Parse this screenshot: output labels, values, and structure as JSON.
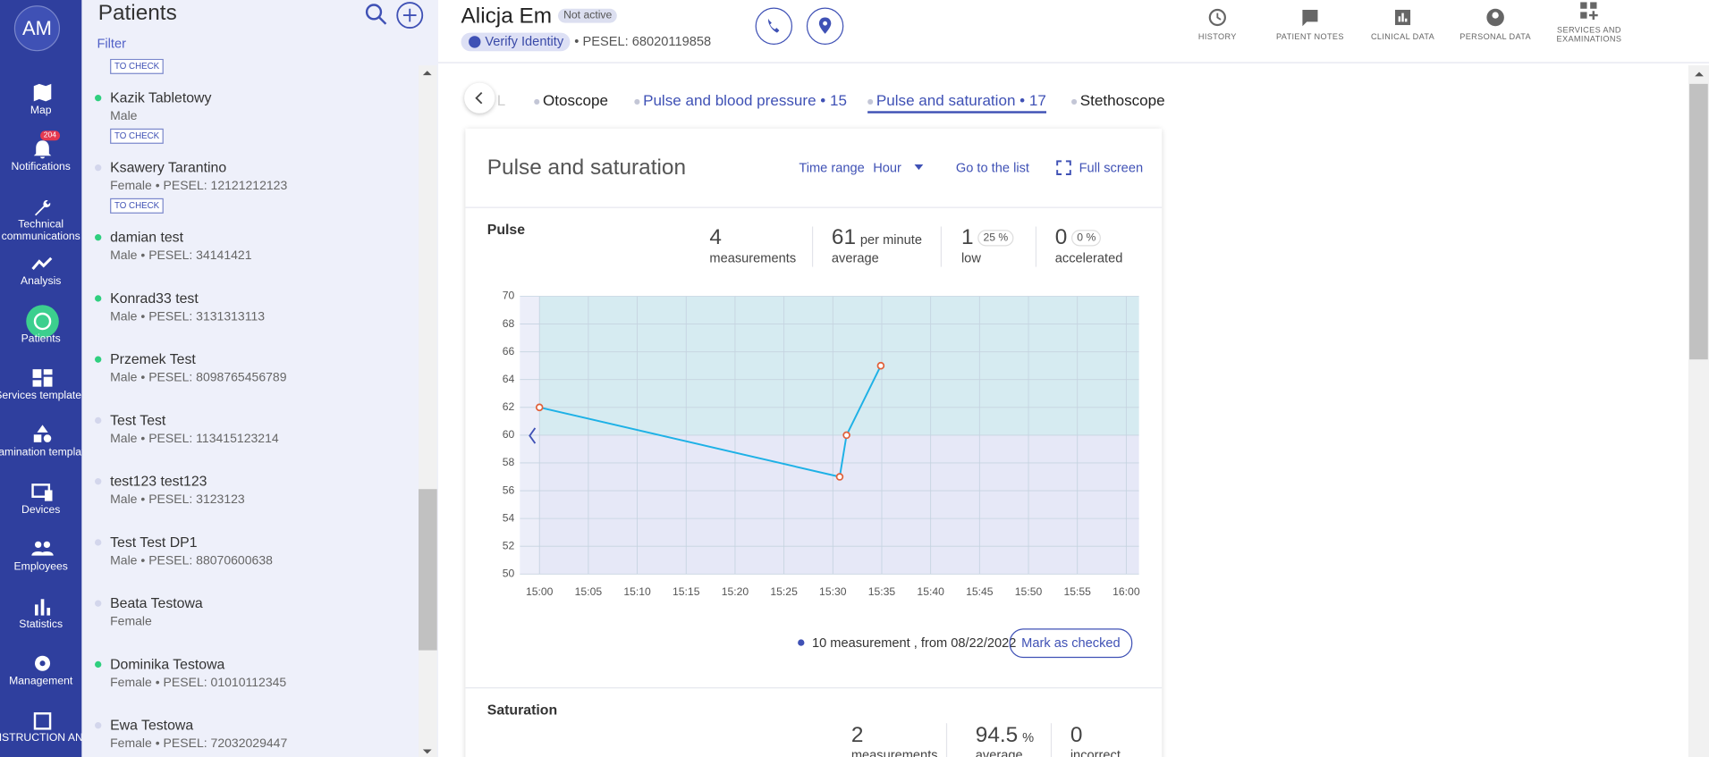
{
  "sidebar": {
    "avatar": "AM",
    "items": [
      {
        "label": "Map"
      },
      {
        "label": "Notifications",
        "badge": 204
      },
      {
        "label": "Technical communications"
      },
      {
        "label": "Analysis"
      },
      {
        "label": "Patients"
      },
      {
        "label": "Services templates"
      },
      {
        "label": "Examination templates"
      },
      {
        "label": "Devices"
      },
      {
        "label": "Employees"
      },
      {
        "label": "Statistics"
      },
      {
        "label": "Management"
      },
      {
        "label": "INSTRUCTION AND"
      }
    ],
    "active": 4
  },
  "patients": {
    "title": "Patients",
    "filter": "Filter",
    "list": [
      {
        "status": "TO CHECK"
      },
      {
        "name": "Kazik Tabletowy",
        "sex": "Male",
        "status": "TO CHECK",
        "online": true
      },
      {
        "name": "Ksawery Tarantino",
        "sex": "Female",
        "pesel": "PESEL: 12121212123",
        "status": "TO CHECK",
        "online": false
      },
      {
        "name": "damian test",
        "sex": "Male",
        "pesel": "PESEL: 34141421",
        "online": true
      },
      {
        "name": "Konrad33 test",
        "sex": "Male",
        "pesel": "PESEL: 3131313113",
        "online": true
      },
      {
        "name": "Przemek Test",
        "sex": "Male",
        "pesel": "PESEL: 8098765456789",
        "online": true
      },
      {
        "name": "Test Test",
        "sex": "Male",
        "pesel": "PESEL: 113415123214",
        "online": false
      },
      {
        "name": "test123 test123",
        "sex": "Male",
        "pesel": "PESEL: 3123123",
        "online": false
      },
      {
        "name": "Test Test DP1",
        "sex": "Male",
        "pesel": "PESEL: 88070600638",
        "online": false
      },
      {
        "name": "Beata Testowa",
        "sex": "Female",
        "online": false
      },
      {
        "name": "Dominika Testowa",
        "sex": "Female",
        "pesel": "PESEL: 01010112345",
        "online": true
      },
      {
        "name": "Ewa Testowa",
        "sex": "Female",
        "pesel": "PESEL: 72032029447",
        "online": false
      }
    ]
  },
  "header": {
    "name": "Alicja Em",
    "state": "Not active",
    "verify": "Verify Identity",
    "pesel": "PESEL: 68020119858",
    "actions": [
      "HISTORY",
      "PATIENT NOTES",
      "CLINICAL DATA",
      "PERSONAL DATA",
      "SERVICES AND EXAMINATIONS"
    ]
  },
  "tabs": {
    "items": [
      "L",
      "Otoscope",
      "Pulse and blood pressure • 15",
      "Pulse and saturation • 17",
      "Stethoscope"
    ],
    "active": 3
  },
  "panel": {
    "title": "Pulse and saturation",
    "time_range": "Time range",
    "range_value": "Hour",
    "go_to_list": "Go to the list",
    "full_screen": "Full screen"
  },
  "pulse": {
    "title": "Pulse",
    "stats": [
      {
        "value": 4,
        "label": "measurements"
      },
      {
        "value": 61,
        "unit": "per minute",
        "label": "average"
      },
      {
        "value": 1,
        "pct": "25 %",
        "label": "low"
      },
      {
        "value": 0,
        "pct": "0 %",
        "label": "accelerated"
      }
    ],
    "footer": "10 measurement , from 08/22/2022",
    "button": "Mark as checked"
  },
  "chart_data": {
    "type": "line",
    "x": [
      0,
      30.7,
      31.4,
      34.9
    ],
    "series": [
      {
        "color": "#1eb1e6",
        "marker_color": "#e0603a",
        "values": [
          62,
          57,
          60,
          65
        ]
      }
    ],
    "xlim": [
      -2,
      61.3
    ],
    "xticks": [
      {
        "value": 0,
        "label": "15:00"
      },
      {
        "value": 5,
        "label": "15:05"
      },
      {
        "value": 10,
        "label": "15:10"
      },
      {
        "value": 15,
        "label": "15:15"
      },
      {
        "value": 20,
        "label": "15:20"
      },
      {
        "value": 25,
        "label": "15:25"
      },
      {
        "value": 30,
        "label": "15:30"
      },
      {
        "value": 35,
        "label": "15:35"
      },
      {
        "value": 40,
        "label": "15:40"
      },
      {
        "value": 45,
        "label": "15:45"
      },
      {
        "value": 50,
        "label": "15:50"
      },
      {
        "value": 55,
        "label": "15:55"
      },
      {
        "value": 60,
        "label": "16:00"
      }
    ],
    "ylim": [
      50,
      70
    ],
    "yticks": [
      50,
      52,
      54,
      56,
      58,
      60,
      62,
      64,
      66,
      68,
      70
    ],
    "bands": [
      {
        "from": 60,
        "to": 70,
        "color": "#d6ebf1"
      },
      {
        "from": 50,
        "to": 60,
        "color": "#e6e8f7"
      }
    ],
    "grid": true
  },
  "saturation": {
    "title": "Saturation",
    "stats": [
      {
        "value": 2,
        "label": "measurements"
      },
      {
        "value": 94.5,
        "unit": "%",
        "label": "average"
      },
      {
        "value": 0,
        "label": "incorrect"
      }
    ]
  }
}
